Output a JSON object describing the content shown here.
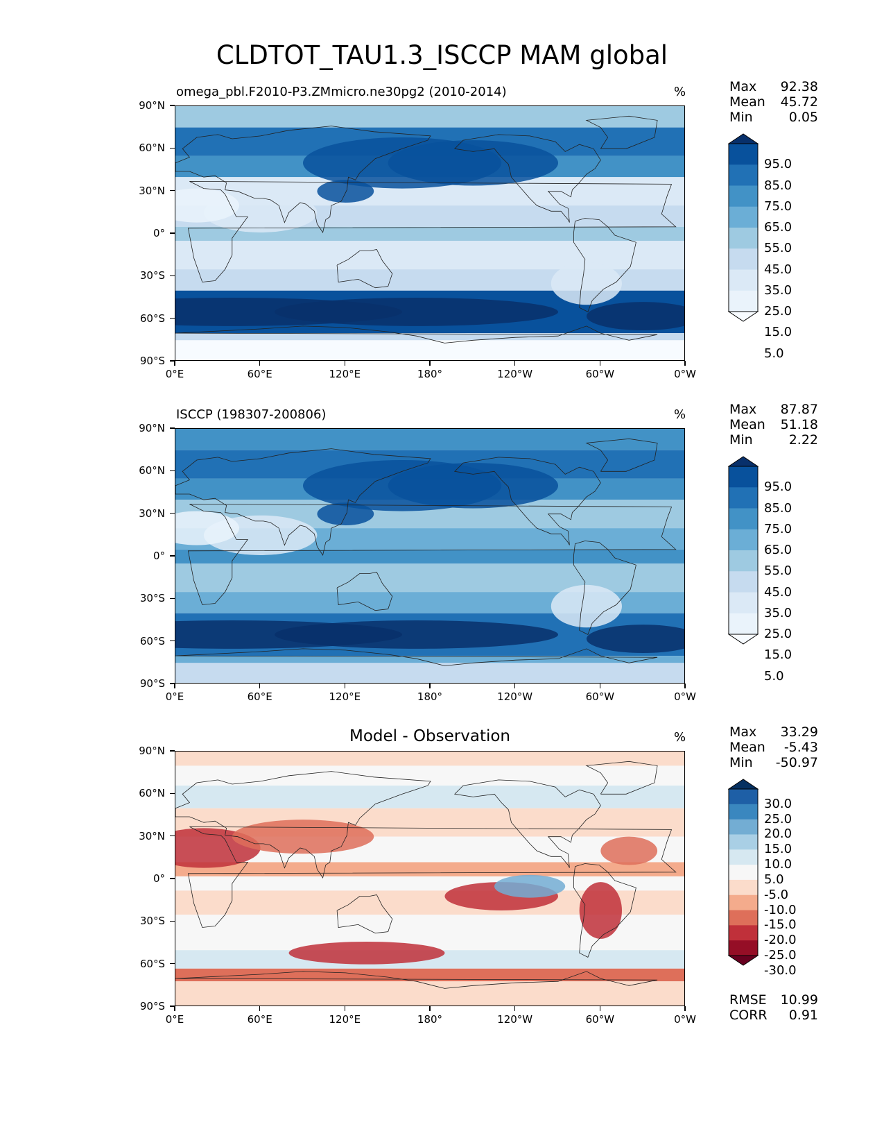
{
  "title": "CLDTOT_TAU1.3_ISCCP MAM global",
  "lat_labels": [
    "90°N",
    "60°N",
    "30°N",
    "0°",
    "30°S",
    "60°S",
    "90°S"
  ],
  "lon_labels": [
    "0°E",
    "60°E",
    "120°E",
    "180°",
    "120°W",
    "60°W",
    "0°W"
  ],
  "panels": [
    {
      "title": "omega_pbl.F2010-P3.ZMmicro.ne30pg2 (2010-2014)",
      "title_align": "left",
      "unit": "%",
      "stats": {
        "max_label": "Max",
        "max": "92.38",
        "mean_label": "Mean",
        "mean": "45.72",
        "min_label": "Min",
        "min": "0.05"
      },
      "colorbar_labels": [
        "95.0",
        "85.0",
        "75.0",
        "65.0",
        "55.0",
        "45.0",
        "35.0",
        "25.0",
        "15.0",
        "5.0"
      ],
      "colors": [
        "#08306b",
        "#08519c",
        "#2171b5",
        "#4292c6",
        "#6baed6",
        "#9ecae1",
        "#c6dbef",
        "#dbe9f6",
        "#eaf3fb",
        "#f7fbff"
      ]
    },
    {
      "title": "ISCCP (198307-200806)",
      "title_align": "left",
      "unit": "%",
      "stats": {
        "max_label": "Max",
        "max": "87.87",
        "mean_label": "Mean",
        "mean": "51.18",
        "min_label": "Min",
        "min": "2.22"
      },
      "colorbar_labels": [
        "95.0",
        "85.0",
        "75.0",
        "65.0",
        "55.0",
        "45.0",
        "35.0",
        "25.0",
        "15.0",
        "5.0"
      ],
      "colors": [
        "#08306b",
        "#08519c",
        "#2171b5",
        "#4292c6",
        "#6baed6",
        "#9ecae1",
        "#c6dbef",
        "#dbe9f6",
        "#eaf3fb",
        "#f7fbff"
      ]
    },
    {
      "title": "Model - Observation",
      "title_align": "center",
      "unit": "%",
      "stats": {
        "max_label": "Max",
        "max": "33.29",
        "mean_label": "Mean",
        "mean": "-5.43",
        "min_label": "Min",
        "min": "-50.97"
      },
      "colorbar_labels": [
        "30.0",
        "25.0",
        "20.0",
        "15.0",
        "10.0",
        "5.0",
        "-5.0",
        "-10.0",
        "-15.0",
        "-20.0",
        "-25.0",
        "-30.0"
      ],
      "colors": [
        "#053061",
        "#1e5fa6",
        "#3a87bf",
        "#73add3",
        "#a9cfe5",
        "#d6e8f1",
        "#f7f7f7",
        "#fbdccb",
        "#f4ab8c",
        "#de6f5a",
        "#c0303a",
        "#950e26",
        "#67001f"
      ],
      "extra": {
        "rmse_label": "RMSE",
        "rmse": "10.99",
        "corr_label": "CORR",
        "corr": "0.91"
      }
    }
  ]
}
